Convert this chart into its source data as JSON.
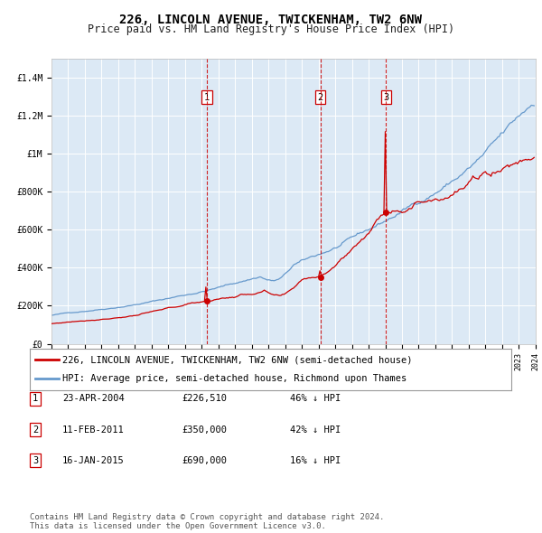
{
  "title": "226, LINCOLN AVENUE, TWICKENHAM, TW2 6NW",
  "subtitle": "Price paid vs. HM Land Registry's House Price Index (HPI)",
  "background_color": "#dce9f5",
  "plot_bg_color": "#dce9f5",
  "ylim": [
    0,
    1500000
  ],
  "yticks": [
    0,
    200000,
    400000,
    600000,
    800000,
    1000000,
    1200000,
    1400000
  ],
  "ytick_labels": [
    "£0",
    "£200K",
    "£400K",
    "£600K",
    "£800K",
    "£1M",
    "£1.2M",
    "£1.4M"
  ],
  "xstart_year": 1995,
  "xend_year": 2024,
  "sale_dates": [
    "2004-04-23",
    "2011-02-11",
    "2015-01-16"
  ],
  "sale_prices": [
    226510,
    350000,
    690000
  ],
  "sale_labels": [
    "1",
    "2",
    "3"
  ],
  "legend_red_label": "226, LINCOLN AVENUE, TWICKENHAM, TW2 6NW (semi-detached house)",
  "legend_blue_label": "HPI: Average price, semi-detached house, Richmond upon Thames",
  "table_rows": [
    [
      "1",
      "23-APR-2004",
      "£226,510",
      "46% ↓ HPI"
    ],
    [
      "2",
      "11-FEB-2011",
      "£350,000",
      "42% ↓ HPI"
    ],
    [
      "3",
      "16-JAN-2015",
      "£690,000",
      "16% ↓ HPI"
    ]
  ],
  "footer": "Contains HM Land Registry data © Crown copyright and database right 2024.\nThis data is licensed under the Open Government Licence v3.0.",
  "red_color": "#cc0000",
  "blue_color": "#6699cc",
  "marker_color": "#cc0000",
  "dashed_color": "#cc0000",
  "grid_color": "#ffffff",
  "title_fontsize": 10,
  "subtitle_fontsize": 8.5,
  "tick_fontsize": 7,
  "legend_fontsize": 7.5,
  "table_fontsize": 7.5,
  "footer_fontsize": 6.5
}
